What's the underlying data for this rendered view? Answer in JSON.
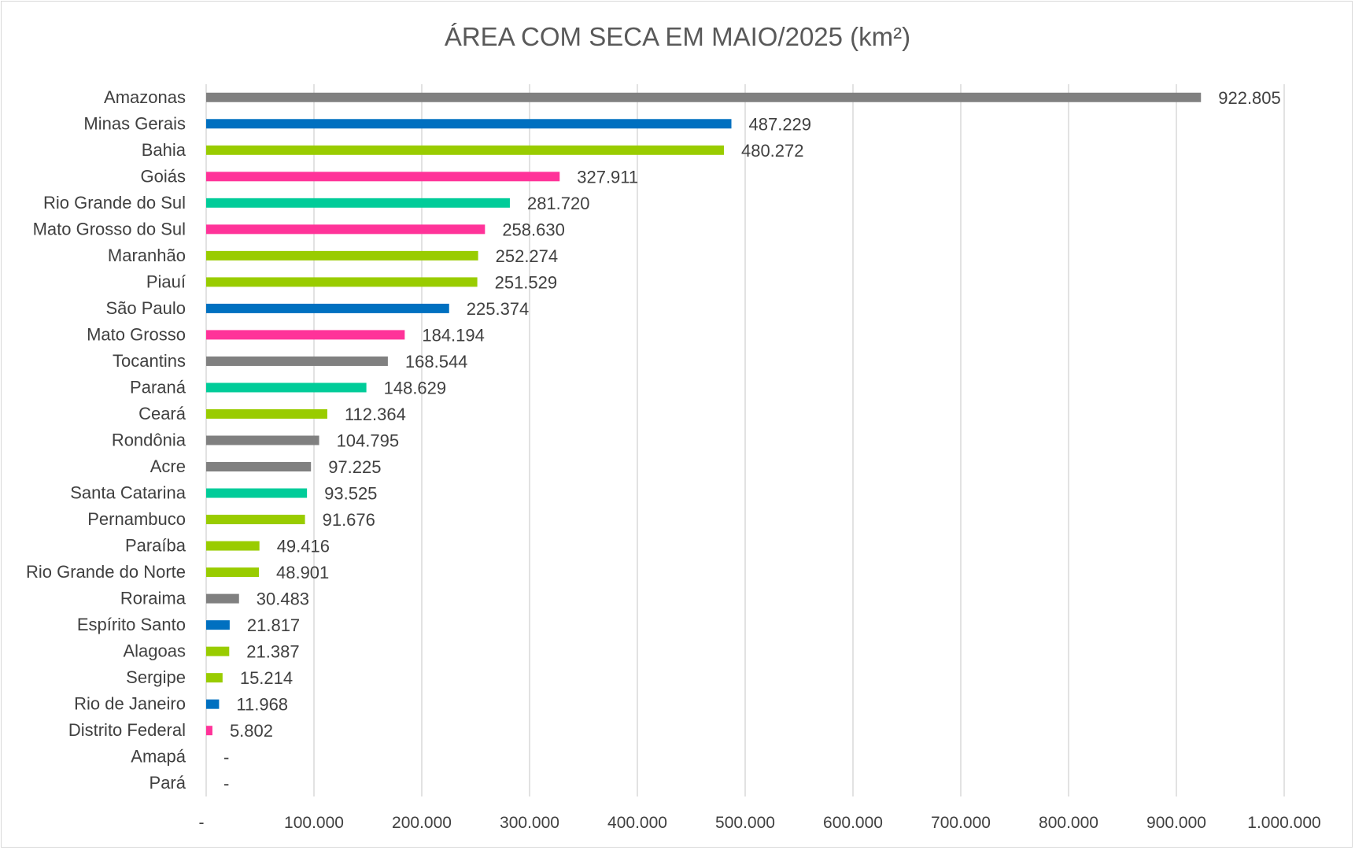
{
  "chart_data": {
    "type": "bar",
    "orientation": "horizontal",
    "title": "ÁREA COM SECA EM MAIO/2025 (km²)",
    "xlabel": "",
    "ylabel": "",
    "xlim": [
      0,
      1000000
    ],
    "x_ticks": [
      "-",
      "100.000",
      "200.000",
      "300.000",
      "400.000",
      "500.000",
      "600.000",
      "700.000",
      "800.000",
      "900.000",
      "1.000.000"
    ],
    "grid": "vertical",
    "legend": "none",
    "categories": [
      "Amazonas",
      "Minas Gerais",
      "Bahia",
      "Goiás",
      "Rio Grande do Sul",
      "Mato Grosso do Sul",
      "Maranhão",
      "Piauí",
      "São Paulo",
      "Mato Grosso",
      "Tocantins",
      "Paraná",
      "Ceará",
      "Rondônia",
      "Acre",
      "Santa Catarina",
      "Pernambuco",
      "Paraíba",
      "Rio Grande do Norte",
      "Roraima",
      "Espírito Santo",
      "Alagoas",
      "Sergipe",
      "Rio de Janeiro",
      "Distrito Federal",
      "Amapá",
      "Pará"
    ],
    "values": [
      922805,
      487229,
      480272,
      327911,
      281720,
      258630,
      252274,
      251529,
      225374,
      184194,
      168544,
      148629,
      112364,
      104795,
      97225,
      93525,
      91676,
      49416,
      48901,
      30483,
      21817,
      21387,
      15214,
      11968,
      5802,
      0,
      0
    ],
    "data_labels": [
      "922.805",
      "487.229",
      "480.272",
      "327.911",
      "281.720",
      "258.630",
      "252.274",
      "251.529",
      "225.374",
      "184.194",
      "168.544",
      "148.629",
      "112.364",
      "104.795",
      "97.225",
      "93.525",
      "91.676",
      "49.416",
      "48.901",
      "30.483",
      "21.817",
      "21.387",
      "15.214",
      "11.968",
      "5.802",
      "-",
      "-"
    ],
    "colors": [
      "#808080",
      "#0070C0",
      "#99CC00",
      "#FF3399",
      "#00CC99",
      "#FF3399",
      "#99CC00",
      "#99CC00",
      "#0070C0",
      "#FF3399",
      "#808080",
      "#00CC99",
      "#99CC00",
      "#808080",
      "#808080",
      "#00CC99",
      "#99CC00",
      "#99CC00",
      "#99CC00",
      "#808080",
      "#0070C0",
      "#99CC00",
      "#99CC00",
      "#0070C0",
      "#FF3399",
      "#808080",
      "#808080"
    ]
  }
}
